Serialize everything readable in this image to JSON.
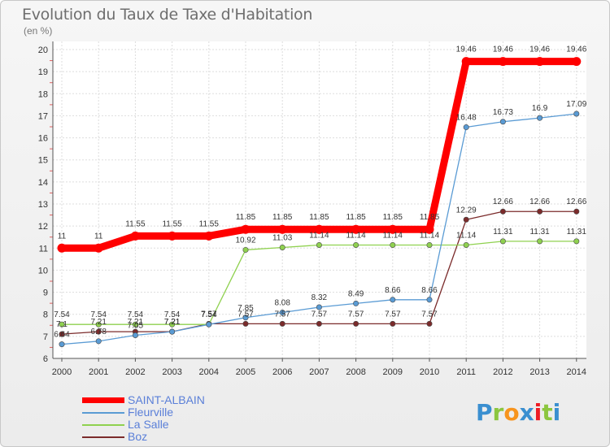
{
  "page": {
    "title": "Evolution du Taux de Taxe d'Habitation",
    "unit": "(en %)"
  },
  "chart_data": {
    "type": "line",
    "title": "Evolution du Taux de Taxe d'Habitation",
    "ylabel": "(en %)",
    "xlabel": "",
    "categories": [
      "2000",
      "2001",
      "2002",
      "2003",
      "2004",
      "2005",
      "2006",
      "2007",
      "2008",
      "2009",
      "2010",
      "2011",
      "2012",
      "2013",
      "2014"
    ],
    "ylim": [
      6,
      20
    ],
    "yticks": [
      6,
      7,
      8,
      9,
      10,
      11,
      12,
      13,
      14,
      15,
      16,
      17,
      18,
      19,
      20
    ],
    "grid": true,
    "legend_position": "bottom-left",
    "series": [
      {
        "name": "SAINT-ALBAIN",
        "color": "#ff0000",
        "values": [
          11,
          11,
          11.55,
          11.55,
          11.55,
          11.85,
          11.85,
          11.85,
          11.85,
          11.85,
          11.85,
          19.46,
          19.46,
          19.46,
          19.46
        ],
        "labels": [
          "11",
          "11",
          "11.55",
          "11.55",
          "11.55",
          "11.85",
          "11.85",
          "11.85",
          "11.85",
          "11.85",
          "11.85",
          "19.46",
          "19.46",
          "19.46",
          "19.46"
        ]
      },
      {
        "name": "Fleurville",
        "color": "#5a9bd4",
        "values": [
          6.64,
          6.78,
          7.05,
          7.21,
          7.54,
          7.85,
          8.08,
          8.32,
          8.49,
          8.66,
          8.66,
          16.48,
          16.73,
          16.9,
          17.09
        ],
        "labels": [
          "6.64",
          "6.78",
          "7.05",
          "7.21",
          "7.54",
          "7.85",
          "8.08",
          "8.32",
          "8.49",
          "8.66",
          "8.66",
          "16.48",
          "16.73",
          "16.9",
          "17.09"
        ]
      },
      {
        "name": "La Salle",
        "color": "#8fd14f",
        "values": [
          7.54,
          7.54,
          7.54,
          7.54,
          7.54,
          10.92,
          11.03,
          11.14,
          11.14,
          11.14,
          11.14,
          11.14,
          11.31,
          11.31,
          11.31
        ],
        "labels": [
          "7.54",
          "7.54",
          "7.54",
          "7.54",
          "7.54",
          "10.92",
          "11.03",
          "11.14",
          "11.14",
          "11.14",
          "11.14",
          "11.14",
          "11.31",
          "11.31",
          "11.31"
        ]
      },
      {
        "name": "Boz",
        "color": "#7b2b2b",
        "values": [
          7.1,
          7.21,
          7.21,
          7.21,
          7.57,
          7.57,
          7.57,
          7.57,
          7.57,
          7.57,
          7.57,
          12.29,
          12.66,
          12.66,
          12.66
        ],
        "labels": [
          "7.1",
          "7.21",
          "7.21",
          "7.21",
          "7.57",
          "7.57",
          "7.57",
          "7.57",
          "7.57",
          "7.57",
          "7.57",
          "12.29",
          "12.66",
          "12.66",
          "12.66"
        ]
      }
    ]
  },
  "legend": {
    "items": [
      {
        "label": "SAINT-ALBAIN",
        "color": "#ff0000"
      },
      {
        "label": "Fleurville",
        "color": "#5a9bd4"
      },
      {
        "label": "La Salle",
        "color": "#8fd14f"
      },
      {
        "label": "Boz",
        "color": "#7b2b2b"
      }
    ]
  },
  "logo": {
    "letters": [
      "P",
      "r",
      "o",
      "x",
      "i",
      "t",
      "i"
    ],
    "colors": [
      "#3a8fd0",
      "#8cc63f",
      "#f7941d",
      "#3a8fd0",
      "#ed1c24",
      "#8cc63f",
      "#3a8fd0"
    ]
  }
}
